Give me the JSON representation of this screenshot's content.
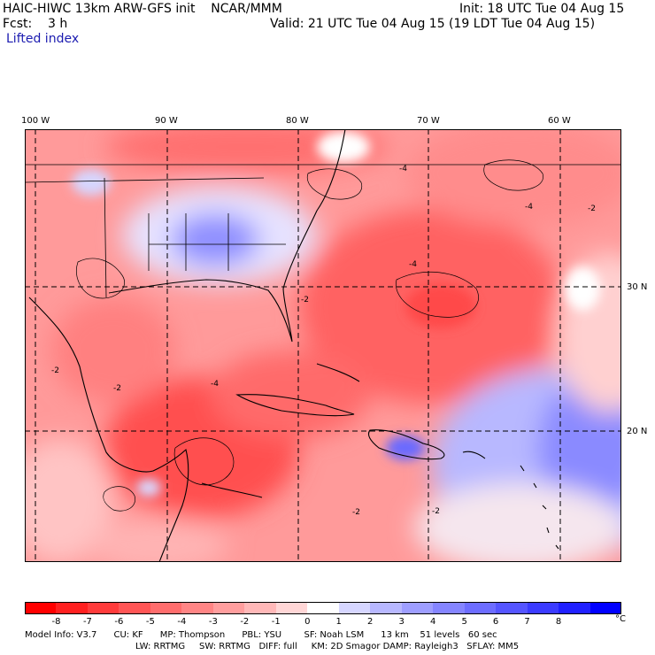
{
  "header": {
    "title": "HAIC-HIWC 13km ARW-GFS init    NCAR/MMM",
    "init": "Init: 18 UTC Tue 04 Aug 15",
    "fcst": "Fcst:    3 h",
    "valid": "Valid: 21 UTC Tue 04 Aug 15 (19 LDT Tue 04 Aug 15)",
    "field": "Lifted index"
  },
  "map": {
    "lon_labels": [
      "100 W",
      "90 W",
      "80 W",
      "70 W",
      "60 W"
    ],
    "lat_labels": [
      "30 N",
      "20 N"
    ],
    "contour_labels": [
      "-4",
      "-2"
    ]
  },
  "colorbar": {
    "ticks": [
      "-8",
      "-7",
      "-6",
      "-5",
      "-4",
      "-3",
      "-2",
      "-1",
      "0",
      "1",
      "2",
      "3",
      "4",
      "5",
      "6",
      "7",
      "8"
    ],
    "unit": "°C",
    "colors": [
      "#ff0000",
      "#ff2020",
      "#ff3b3b",
      "#ff5555",
      "#ff6d6d",
      "#ff8585",
      "#ff9e9e",
      "#ffb8b8",
      "#ffd6d6",
      "#ffffff",
      "#d6d6ff",
      "#b8b8ff",
      "#9e9eff",
      "#8585ff",
      "#6d6dff",
      "#5555ff",
      "#3b3bff",
      "#2020ff",
      "#0000ff"
    ]
  },
  "model_info": {
    "line1": "Model Info: V3.7      CU: KF      MP: Thompson      PBL: YSU        SF: Noah LSM      13 km    51 levels   60 sec",
    "line2": "LW: RRTMG     SW: RRTMG   DIFF: full     KM: 2D Smagor DAMP: Rayleigh3   SFLAY: MM5"
  }
}
